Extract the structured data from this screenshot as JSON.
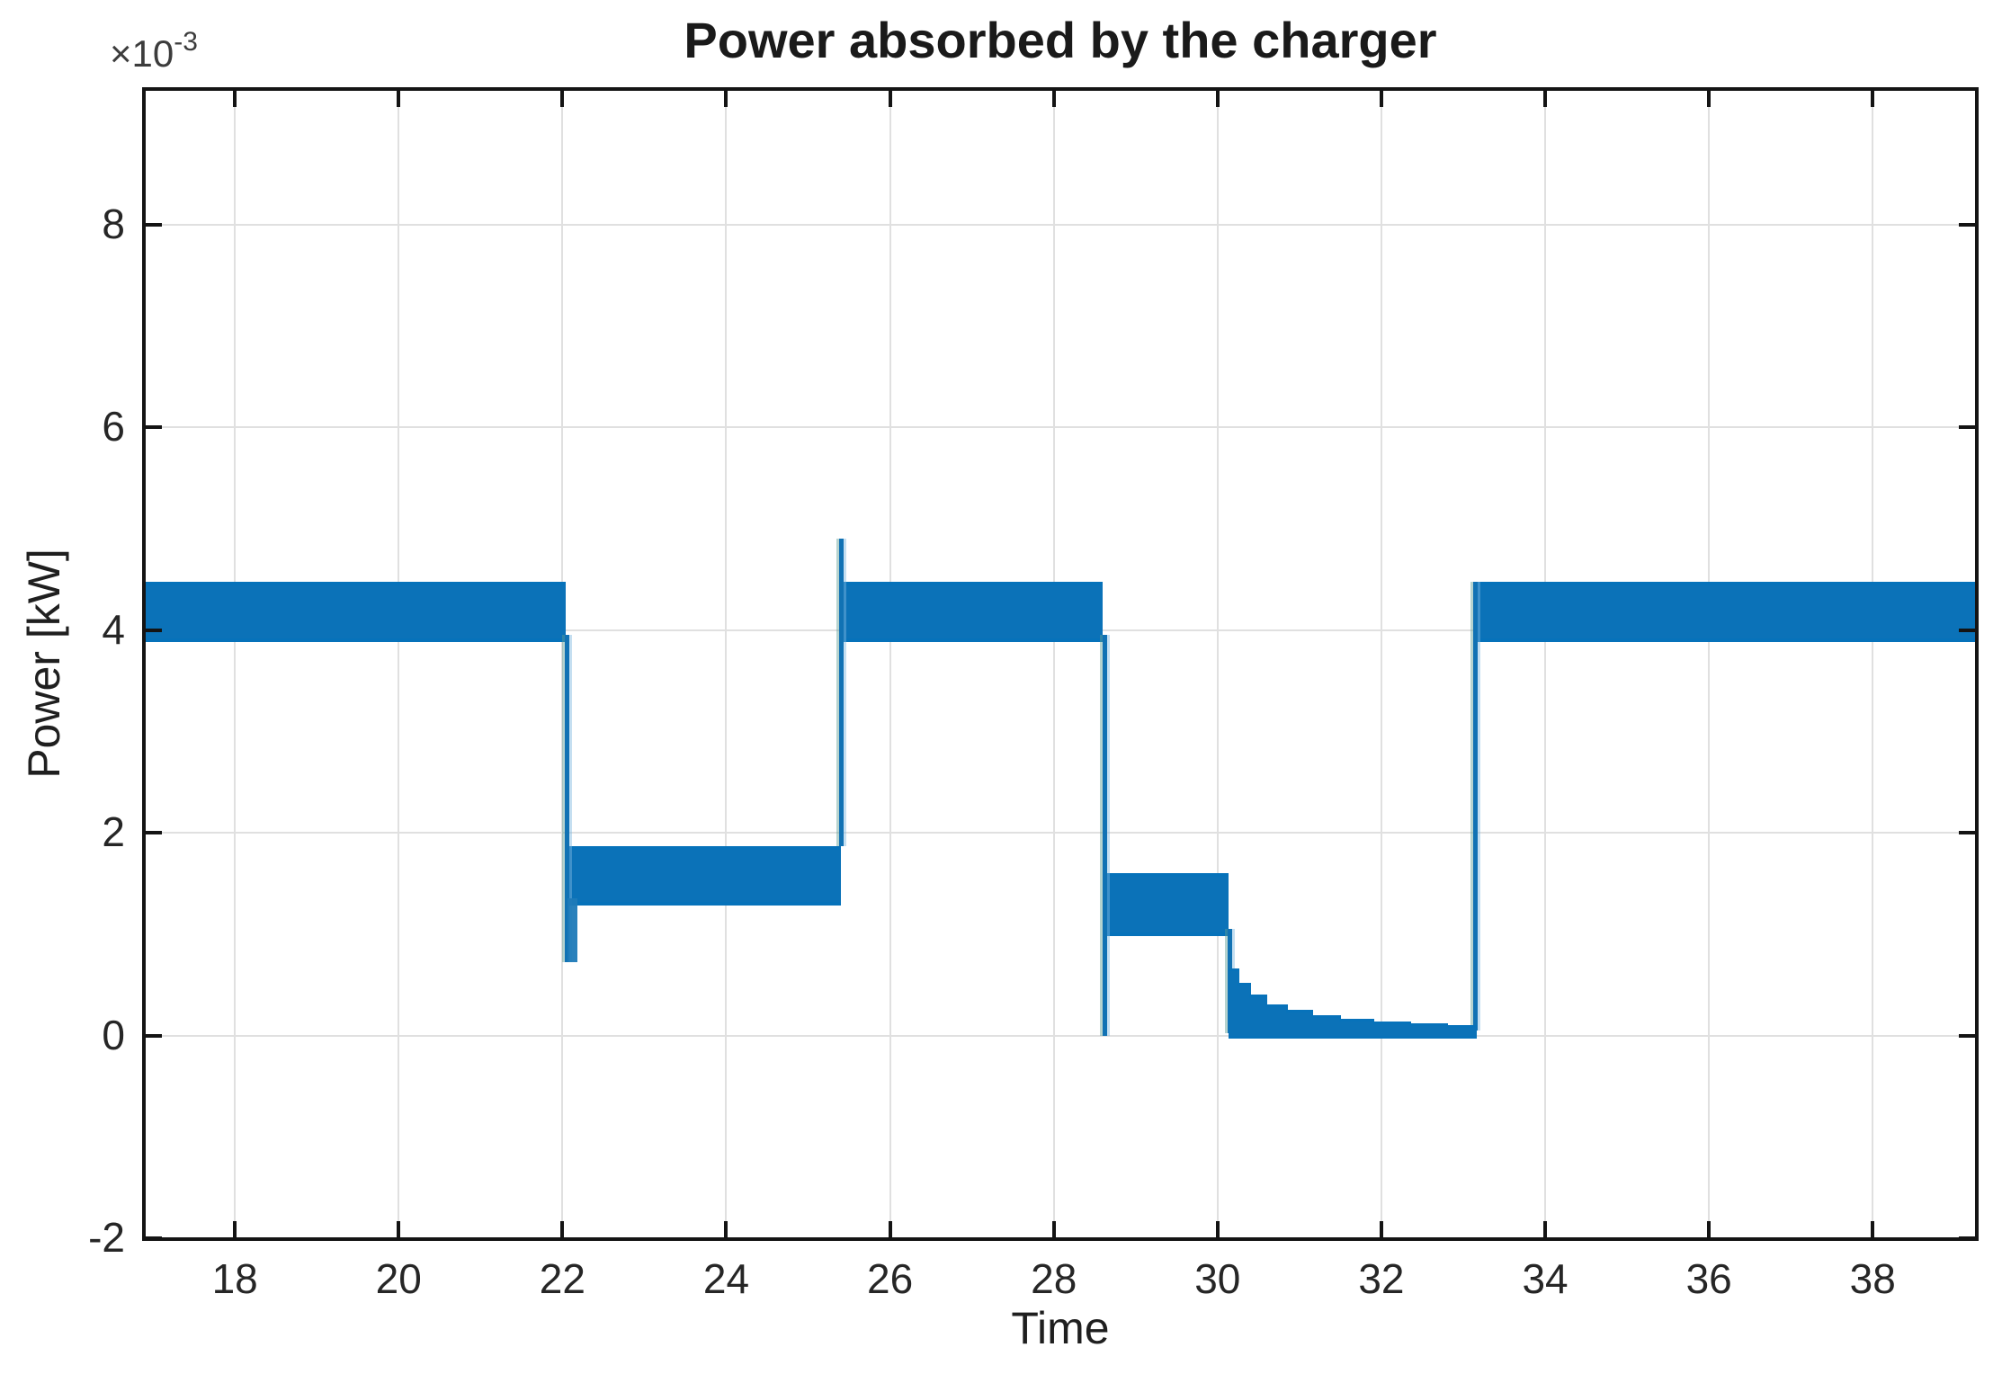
{
  "figure": {
    "title": "Power absorbed by the charger",
    "xlabel": "Time",
    "ylabel": "Power [kW]",
    "y_multiplier_base": "×10",
    "y_multiplier_exp": "-3"
  },
  "colors": {
    "series_blue": "#0B72B8",
    "fringe_blue": "#8FBCDF",
    "grid": "#E0E0E0",
    "axis": "#141414",
    "text": "#262626",
    "background": "#FFFFFF"
  },
  "chart_data": {
    "type": "area",
    "description": "Envelope band of an oscillating charger power signal",
    "title": "Power absorbed by the charger",
    "xlabel": "Time",
    "ylabel": "Power [kW]",
    "y_unit_scale": "1e-3",
    "xlim": [
      16.9,
      39.26
    ],
    "ylim_e3": [
      -2,
      9.33
    ],
    "x_ticks": [
      18,
      20,
      22,
      24,
      26,
      28,
      30,
      32,
      34,
      36,
      38
    ],
    "y_ticks_e3": [
      -2,
      0,
      2,
      4,
      6,
      8
    ],
    "grid": true,
    "band_segments_e3": [
      {
        "t_start": 16.9,
        "t_end": 22.04,
        "low": 3.95,
        "high": 4.48
      },
      {
        "t_start": 22.07,
        "t_end": 25.4,
        "low": 1.35,
        "high": 1.87
      },
      {
        "t_start": 25.42,
        "t_end": 28.6,
        "low": 3.95,
        "high": 4.48
      },
      {
        "t_start": 28.65,
        "t_end": 30.13,
        "low": 1.05,
        "high": 1.6
      },
      {
        "t_start": 33.14,
        "t_end": 39.26,
        "low": 3.95,
        "high": 4.48
      }
    ],
    "transitions_e3": [
      {
        "t": 22.05,
        "type": "drop",
        "from": 3.95,
        "to": 0.72
      },
      {
        "t": 25.4,
        "type": "rise-with-overshoot",
        "from": 1.87,
        "to": 4.9
      },
      {
        "t": 28.62,
        "type": "drop",
        "from": 3.95,
        "to": 0.0
      },
      {
        "t": 30.14,
        "type": "drop",
        "from": 1.05,
        "to": 0.02
      },
      {
        "t": 33.14,
        "type": "rise",
        "from": 0.05,
        "to": 4.48
      }
    ],
    "undershoot_tail_e3": {
      "t_start": 22.06,
      "t_end": 22.18,
      "low": 0.72,
      "high": 1.35
    },
    "decay_steps_e3": {
      "bottom": 0.02,
      "steps": [
        [
          30.14,
          30.25,
          0.66
        ],
        [
          30.25,
          30.4,
          0.52
        ],
        [
          30.4,
          30.6,
          0.4
        ],
        [
          30.6,
          30.85,
          0.31
        ],
        [
          30.85,
          31.15,
          0.25
        ],
        [
          31.15,
          31.5,
          0.2
        ],
        [
          31.5,
          31.9,
          0.165
        ],
        [
          31.9,
          32.35,
          0.14
        ],
        [
          32.35,
          32.8,
          0.12
        ],
        [
          32.8,
          33.15,
          0.105
        ]
      ]
    }
  }
}
